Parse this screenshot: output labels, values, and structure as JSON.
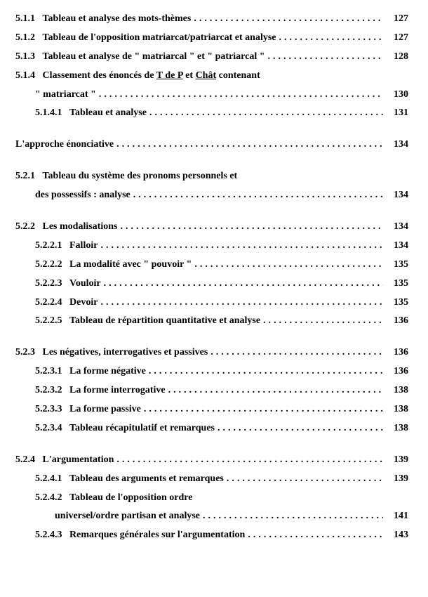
{
  "typography": {
    "font_family": "Georgia, Times New Roman, serif",
    "font_size_pt": 11,
    "font_weight": "bold",
    "color": "#000000"
  },
  "background_color": "#ffffff",
  "leader_char": ".",
  "entries": [
    {
      "num": "5.1.1",
      "indent": 0,
      "text": "Tableau et analyse des mots-thèmes",
      "page": "127",
      "gap": "none"
    },
    {
      "num": "5.1.2",
      "indent": 0,
      "text": "Tableau de l'opposition matriarcat/patriarcat et analyse",
      "page": "127",
      "gap": "none"
    },
    {
      "num": "5.1.3",
      "indent": 0,
      "text": "Tableau et analyse de \" matriarcal \" et \" patriarcal \"",
      "page": "128",
      "gap": "none"
    },
    {
      "num": "5.1.4",
      "indent": 0,
      "rich": [
        {
          "t": "Classement des énoncés de "
        },
        {
          "t": "T de P",
          "u": true
        },
        {
          "t": " et "
        },
        {
          "t": "Chât",
          "u": true
        },
        {
          "t": " contenant"
        }
      ],
      "page": "",
      "no_leader": true,
      "gap": "none"
    },
    {
      "num": "",
      "indent": 1,
      "text": "\" matriarcat \"",
      "page": "130",
      "gap": "none"
    },
    {
      "num": "5.1.4.1",
      "indent": 1,
      "text": "Tableau et analyse",
      "page": "131",
      "gap": "none"
    },
    {
      "num": "",
      "indent": -1,
      "text": "L'approche énonciative",
      "page": "134",
      "gap": "big"
    },
    {
      "num": "5.2.1",
      "indent": 0,
      "text": "Tableau du système des pronoms personnels et",
      "page": "",
      "no_leader": true,
      "gap": "big"
    },
    {
      "num": "",
      "indent": 1,
      "text": "des possessifs : analyse",
      "page": "134",
      "gap": "none"
    },
    {
      "num": "5.2.2",
      "indent": 0,
      "text": "Les modalisations",
      "page": "134",
      "gap": "big"
    },
    {
      "num": "5.2.2.1",
      "indent": 1,
      "text": "Falloir",
      "page": "134",
      "gap": "none"
    },
    {
      "num": "5.2.2.2",
      "indent": 1,
      "text": "La modalité avec \" pouvoir \"",
      "page": "135",
      "gap": "none"
    },
    {
      "num": "5.2.2.3",
      "indent": 1,
      "text": "Vouloir",
      "page": "135",
      "gap": "none"
    },
    {
      "num": "5.2.2.4",
      "indent": 1,
      "text": "Devoir",
      "page": "135",
      "gap": "none"
    },
    {
      "num": "5.2.2.5",
      "indent": 1,
      "text": "Tableau de répartition quantitative et analyse",
      "page": "136",
      "gap": "none"
    },
    {
      "num": "5.2.3",
      "indent": 0,
      "text": "Les négatives, interrogatives et passives",
      "page": "136",
      "gap": "big"
    },
    {
      "num": "5.2.3.1",
      "indent": 1,
      "text": "La forme négative",
      "page": "136",
      "gap": "none"
    },
    {
      "num": "5.2.3.2",
      "indent": 1,
      "text": "La forme interrogative",
      "page": "138",
      "gap": "none"
    },
    {
      "num": "5.2.3.3",
      "indent": 1,
      "text": "La forme passive",
      "page": "138",
      "gap": "none"
    },
    {
      "num": "5.2.3.4",
      "indent": 1,
      "text": "Tableau récapitulatif et remarques",
      "page": "138",
      "gap": "none"
    },
    {
      "num": "5.2.4",
      "indent": 0,
      "text": "L'argumentation",
      "page": "139",
      "gap": "big"
    },
    {
      "num": "5.2.4.1",
      "indent": 1,
      "text": "Tableau des arguments et remarques",
      "page": "139",
      "gap": "none"
    },
    {
      "num": "5.2.4.2",
      "indent": 1,
      "text": "Tableau de l'opposition ordre",
      "page": "",
      "no_leader": true,
      "gap": "none"
    },
    {
      "num": "",
      "indent": 2,
      "text": "universel/ordre partisan et analyse",
      "page": "141",
      "gap": "none"
    },
    {
      "num": "5.2.4.3",
      "indent": 1,
      "text": "Remarques générales sur l'argumentation",
      "page": "143",
      "gap": "none"
    }
  ]
}
